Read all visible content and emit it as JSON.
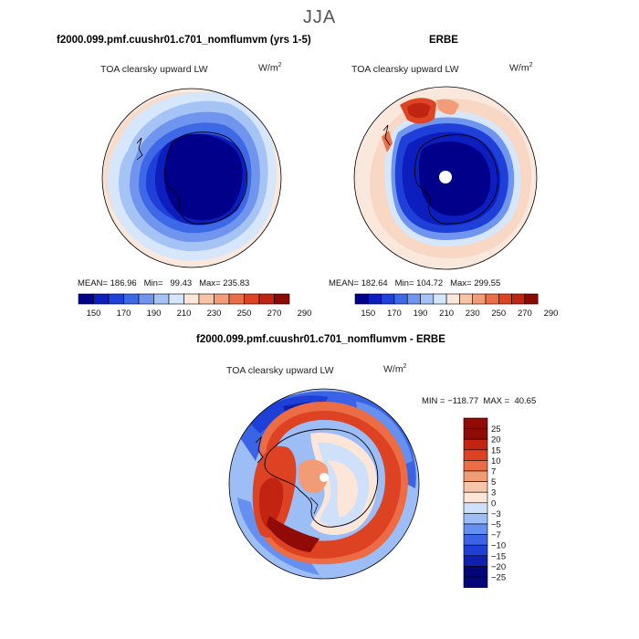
{
  "page": {
    "title": "JJA"
  },
  "colors": {
    "abs_scale": [
      "#00008a",
      "#0c1ebd",
      "#1e3fd8",
      "#3d68e6",
      "#6f95ef",
      "#a6c3f6",
      "#d6e6fb",
      "#fbe8dc",
      "#f8c4a6",
      "#f29d78",
      "#ea6e47",
      "#dc4424",
      "#c02513",
      "#8a0b04"
    ],
    "diff_scale": [
      "#05057a",
      "#0f1fae",
      "#1f40d6",
      "#3a63e6",
      "#6690ef",
      "#9dbdf6",
      "#cfe0fb",
      "#fbe6d8",
      "#f7c6aa",
      "#f29c76",
      "#eb6c45",
      "#dd4322",
      "#c32412",
      "#900b05"
    ]
  },
  "chart_data": [
    {
      "type": "heatmap",
      "projection": "south polar stereographic",
      "title": "f2000.099.pmf.cuushr01.c701_nomflumvm (yrs 1-5)",
      "variable": "TOA clearsky upward LW",
      "units": "W/m",
      "units_sup": "2",
      "stats": {
        "mean": 186.96,
        "min": 99.43,
        "max": 235.83
      },
      "stats_text": "MEAN= 186.96   Min=   99.43   Max= 235.83",
      "colorbar": {
        "orientation": "horizontal",
        "tick_labels": [
          "150",
          "170",
          "190",
          "210",
          "230",
          "250",
          "270",
          "290"
        ]
      }
    },
    {
      "type": "heatmap",
      "projection": "south polar stereographic",
      "title": "ERBE",
      "variable": "TOA clearsky upward LW",
      "units": "W/m",
      "units_sup": "2",
      "stats": {
        "mean": 182.64,
        "min": 104.72,
        "max": 299.55
      },
      "stats_text": "MEAN= 182.64   Min= 104.72   Max= 299.55",
      "colorbar": {
        "orientation": "horizontal",
        "tick_labels": [
          "150",
          "170",
          "190",
          "210",
          "230",
          "250",
          "270",
          "290"
        ]
      }
    },
    {
      "type": "heatmap",
      "projection": "south polar stereographic",
      "title": "f2000.099.pmf.cuushr01.c701_nomflumvm - ERBE",
      "variable": "TOA clearsky upward LW",
      "units": "W/m",
      "units_sup": "2",
      "stats": {
        "min": -118.77,
        "max": 40.65
      },
      "stats_text": "MIN = −118.77  MAX =  40.65",
      "colorbar": {
        "orientation": "vertical",
        "tick_labels": [
          "25",
          "20",
          "15",
          "10",
          "7",
          "5",
          "3",
          "0",
          "−3",
          "−5",
          "−7",
          "−10",
          "−15",
          "−20",
          "−25"
        ]
      }
    }
  ]
}
